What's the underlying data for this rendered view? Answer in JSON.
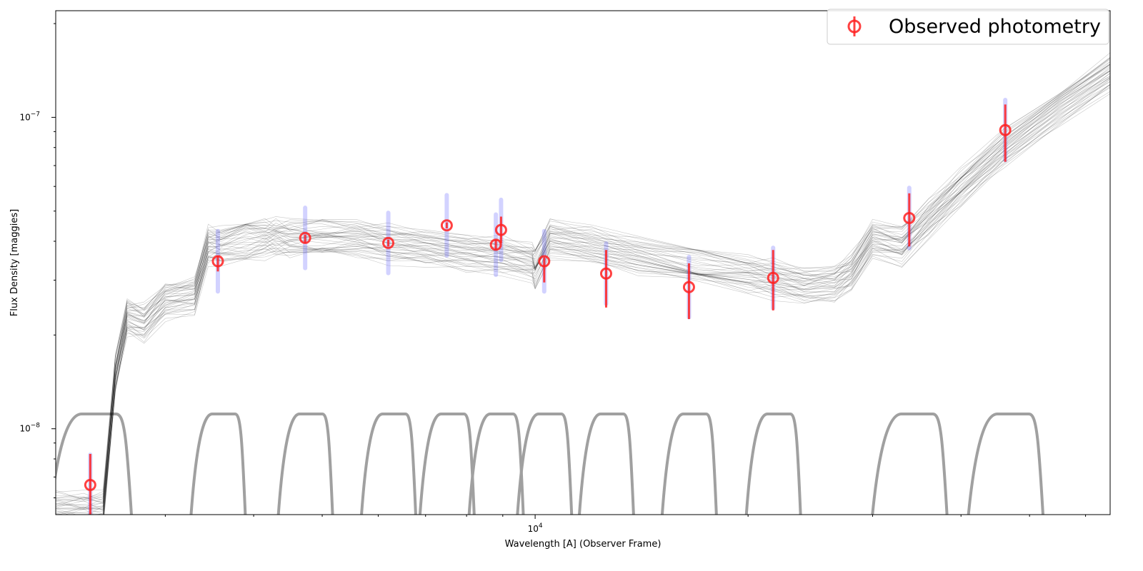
{
  "chart_data": {
    "type": "scatter",
    "title": "",
    "xlabel": "Wavelength [A] (Observer Frame)",
    "ylabel": "Flux Density [maggies]",
    "xscale": "log",
    "yscale": "log",
    "xlim": [
      2100,
      65000
    ],
    "ylim": [
      5.3e-09,
      2.2e-07
    ],
    "x_major_ticks": [
      {
        "value": 10000,
        "label": "10^4"
      }
    ],
    "y_major_ticks": [
      {
        "value": 1e-08,
        "label": "10^-8"
      },
      {
        "value": 1e-07,
        "label": "10^-7"
      }
    ],
    "grid": false,
    "legend": {
      "position": "top-right",
      "entries": [
        "Observed photometry"
      ]
    },
    "colors": {
      "observed": "#ff2020",
      "model": "#000000",
      "model_photometry": "#3030ff",
      "filters": "#a0a0a0"
    },
    "series": [
      {
        "name": "Observed photometry",
        "marker": "open-circle",
        "x": [
          2350,
          3560,
          4730,
          6200,
          7500,
          8800,
          8950,
          10300,
          12600,
          16500,
          21700,
          33800,
          46200
        ],
        "y": [
          6.6e-09,
          3.45e-08,
          4.1e-08,
          3.95e-08,
          4.5e-08,
          3.9e-08,
          4.35e-08,
          3.45e-08,
          3.15e-08,
          2.85e-08,
          3.05e-08,
          4.75e-08,
          9.1e-08
        ],
        "y_low": [
          4.9e-09,
          3.2e-08,
          3.95e-08,
          3.85e-08,
          4.4e-08,
          3.75e-08,
          3.95e-08,
          2.95e-08,
          2.45e-08,
          2.25e-08,
          2.4e-08,
          3.85e-08,
          7.2e-08
        ],
        "y_high": [
          8.3e-09,
          3.6e-08,
          4.2e-08,
          4.05e-08,
          4.6e-08,
          4.05e-08,
          4.8e-08,
          3.55e-08,
          3.75e-08,
          3.4e-08,
          3.75e-08,
          5.7e-08,
          1.1e-07
        ]
      }
    ],
    "model_spectrum": {
      "x": [
        2100,
        2300,
        2450,
        2550,
        2650,
        2800,
        3000,
        3300,
        3450,
        3600,
        3900,
        4150,
        4300,
        4500,
        5000,
        5600,
        6200,
        7000,
        8000,
        9000,
        9900,
        10000,
        10500,
        12000,
        14000,
        17000,
        20000,
        21700,
        24000,
        26500,
        28000,
        30000,
        33000,
        36000,
        40000,
        46000,
        55000,
        65000
      ],
      "y": [
        5.5e-09,
        5.5e-09,
        5.5e-09,
        1.5e-08,
        2.3e-08,
        2.2e-08,
        2.6e-08,
        2.7e-08,
        3.9e-08,
        3.9e-08,
        4.05e-08,
        4.1e-08,
        4.15e-08,
        4.1e-08,
        4.1e-08,
        4.1e-08,
        3.95e-08,
        3.85e-08,
        3.7e-08,
        3.6e-08,
        3.45e-08,
        3.3e-08,
        4.1e-08,
        3.9e-08,
        3.6e-08,
        3.3e-08,
        3.15e-08,
        3.05e-08,
        2.9e-08,
        2.95e-08,
        3.2e-08,
        4.1e-08,
        3.9e-08,
        4.75e-08,
        6e-08,
        8e-08,
        1.05e-07,
        1.4e-07
      ],
      "spread_low": 0.88,
      "spread_high": 1.12
    },
    "filter_centers": [
      2350,
      3560,
      4730,
      6200,
      7500,
      8800,
      10300,
      12600,
      16500,
      21700,
      33800,
      46200
    ]
  }
}
